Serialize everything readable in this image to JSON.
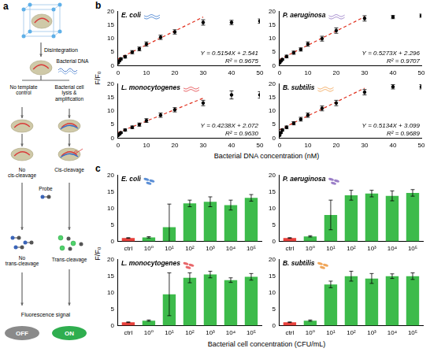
{
  "diagram": {
    "letter": "a",
    "disintegration": "Disintegration",
    "bacterial_dna": "Bacterial DNA",
    "no_template": "No template control",
    "lysis": "Bacterial cell lysis & amplification",
    "no_cis": "No cis-cleavage",
    "cis": "Cis-cleavage",
    "probe": "Probe",
    "no_trans": "No trans-cleavage",
    "trans": "Trans-cleavage",
    "signal": "Fluorescence signal",
    "off": "OFF",
    "on": "ON"
  },
  "chart_data": [
    {
      "panel": "b",
      "x_label": "Bacterial DNA concentration (nM)",
      "y_label": "F/F₀",
      "charts": [
        {
          "type": "scatter",
          "title": "E. coli",
          "color": "#5b8fd6",
          "x": [
            0,
            0.5,
            1,
            2.5,
            5,
            7.5,
            10,
            15,
            20,
            30,
            40,
            50
          ],
          "values": [
            1,
            1.8,
            2.5,
            3.3,
            5,
            6.2,
            8,
            10.5,
            12.5,
            16,
            16,
            16.5
          ],
          "errors": [
            0.2,
            0.3,
            0.4,
            0.5,
            0.6,
            0.7,
            0.8,
            0.8,
            0.8,
            1,
            0.8,
            0.8
          ],
          "fit": {
            "x": [
              0,
              30
            ],
            "values": [
              2.54,
              18.0
            ],
            "color": "#e0301e",
            "line_style": "dashed"
          },
          "annotations": [
            "Y = 0.5154X + 2.541",
            "R² = 0.9675"
          ],
          "xlim": [
            0,
            50
          ],
          "xticks": [
            0,
            10,
            20,
            30,
            40,
            50
          ],
          "ylim": [
            0,
            20
          ],
          "yticks": [
            0,
            5,
            10,
            15,
            20
          ]
        },
        {
          "type": "scatter",
          "title": "P. aeruginosa",
          "color": "#9b7fc8",
          "x": [
            0,
            0.5,
            1,
            2.5,
            5,
            7.5,
            10,
            15,
            20,
            30,
            40,
            50
          ],
          "values": [
            1,
            1.7,
            2.3,
            3.4,
            4.8,
            6,
            8,
            10,
            13,
            17.5,
            18,
            18.5
          ],
          "errors": [
            0.2,
            0.3,
            0.3,
            0.5,
            0.6,
            0.6,
            0.8,
            0.9,
            1,
            1,
            0.6,
            0.6
          ],
          "fit": {
            "x": [
              0,
              30
            ],
            "values": [
              2.3,
              18.1
            ],
            "color": "#e0301e",
            "line_style": "dashed"
          },
          "annotations": [
            "Y = 0.5273X + 2.296",
            "R² = 0.9707"
          ],
          "xlim": [
            0,
            50
          ],
          "xticks": [
            0,
            10,
            20,
            30,
            40,
            50
          ],
          "ylim": [
            0,
            20
          ],
          "yticks": [
            0,
            5,
            10,
            15,
            20
          ]
        },
        {
          "type": "scatter",
          "title": "L. monocytogenes",
          "color": "#e8676a",
          "x": [
            0,
            0.5,
            1,
            2.5,
            5,
            7.5,
            10,
            15,
            20,
            30,
            40,
            50
          ],
          "values": [
            1,
            1.5,
            2,
            3,
            4,
            5,
            6.5,
            8.5,
            10.5,
            13,
            16,
            16
          ],
          "errors": [
            0.2,
            0.3,
            0.3,
            0.4,
            0.5,
            0.6,
            0.7,
            0.8,
            0.8,
            1,
            1.5,
            1.2
          ],
          "fit": {
            "x": [
              0,
              30
            ],
            "values": [
              2.07,
              14.8
            ],
            "color": "#e0301e",
            "line_style": "dashed"
          },
          "annotations": [
            "Y = 0.4238X + 2.072",
            "R² = 0.9630"
          ],
          "xlim": [
            0,
            50
          ],
          "xticks": [
            0,
            10,
            20,
            30,
            40,
            50
          ],
          "ylim": [
            0,
            20
          ],
          "yticks": [
            0,
            5,
            10,
            15,
            20
          ]
        },
        {
          "type": "scatter",
          "title": "B. subtilis",
          "color": "#f0a65a",
          "x": [
            0,
            0.5,
            1,
            2.5,
            5,
            7.5,
            10,
            15,
            20,
            30,
            40,
            50
          ],
          "values": [
            1,
            2,
            3,
            4,
            5.5,
            7,
            8.5,
            11,
            13,
            17,
            19,
            19
          ],
          "errors": [
            0.2,
            0.3,
            0.4,
            0.5,
            0.6,
            0.7,
            0.8,
            0.9,
            1,
            1,
            0.8,
            0.8
          ],
          "fit": {
            "x": [
              0,
              30
            ],
            "values": [
              3.1,
              18.5
            ],
            "color": "#e0301e",
            "line_style": "dashed"
          },
          "annotations": [
            "Y = 0.5134X + 3.099",
            "R² = 0.9689"
          ],
          "xlim": [
            0,
            50
          ],
          "xticks": [
            0,
            10,
            20,
            30,
            40,
            50
          ],
          "ylim": [
            0,
            20
          ],
          "yticks": [
            0,
            5,
            10,
            15,
            20
          ]
        }
      ]
    },
    {
      "panel": "c",
      "x_label": "Bacterial cell concentration (CFU/mL)",
      "y_label": "F/F₀",
      "charts": [
        {
          "type": "bar",
          "title": "E. coli",
          "color": "#5b8fd6",
          "categories": [
            "ctrl",
            "10⁰",
            "10¹",
            "10²",
            "10³",
            "10⁴",
            "10⁵"
          ],
          "values": [
            1,
            1.2,
            4.3,
            11.5,
            12,
            11,
            13.2
          ],
          "errors": [
            0.1,
            0.2,
            7,
            1,
            1.5,
            1.5,
            1
          ],
          "colors": [
            "#e8413c",
            "#3dbb4b",
            "#3dbb4b",
            "#3dbb4b",
            "#3dbb4b",
            "#3dbb4b",
            "#3dbb4b"
          ],
          "ylim": [
            0,
            20
          ],
          "yticks": [
            0,
            5,
            10,
            15,
            20
          ]
        },
        {
          "type": "bar",
          "title": "P. aeruginosa",
          "color": "#9b7fc8",
          "categories": [
            "ctrl",
            "10⁰",
            "10¹",
            "10²",
            "10³",
            "10⁴",
            "10⁵"
          ],
          "values": [
            1,
            1.5,
            8,
            14,
            14.5,
            13.8,
            14.7
          ],
          "errors": [
            0.1,
            0.2,
            4.5,
            1.5,
            1,
            1.5,
            1
          ],
          "colors": [
            "#e8413c",
            "#3dbb4b",
            "#3dbb4b",
            "#3dbb4b",
            "#3dbb4b",
            "#3dbb4b",
            "#3dbb4b"
          ],
          "ylim": [
            0,
            20
          ],
          "yticks": [
            0,
            5,
            10,
            15,
            20
          ]
        },
        {
          "type": "bar",
          "title": "L. monocytogenes",
          "color": "#e8676a",
          "categories": [
            "ctrl",
            "10⁰",
            "10¹",
            "10²",
            "10³",
            "10⁴",
            "10⁵"
          ],
          "values": [
            1,
            1.5,
            9.5,
            14.5,
            15.5,
            13.8,
            14.8
          ],
          "errors": [
            0.1,
            0.2,
            6.5,
            1.5,
            1,
            0.7,
            1
          ],
          "colors": [
            "#e8413c",
            "#3dbb4b",
            "#3dbb4b",
            "#3dbb4b",
            "#3dbb4b",
            "#3dbb4b",
            "#3dbb4b"
          ],
          "ylim": [
            0,
            20
          ],
          "yticks": [
            0,
            5,
            10,
            15,
            20
          ]
        },
        {
          "type": "bar",
          "title": "B. subtilis",
          "color": "#f0a65a",
          "categories": [
            "ctrl",
            "10⁰",
            "10¹",
            "10²",
            "10³",
            "10⁴",
            "10⁵"
          ],
          "values": [
            1,
            1.5,
            12.5,
            15,
            14.3,
            15,
            15
          ],
          "errors": [
            0.1,
            0.2,
            1,
            1.5,
            1.5,
            0.7,
            1
          ],
          "colors": [
            "#e8413c",
            "#3dbb4b",
            "#3dbb4b",
            "#3dbb4b",
            "#3dbb4b",
            "#3dbb4b",
            "#3dbb4b"
          ],
          "ylim": [
            0,
            20
          ],
          "yticks": [
            0,
            5,
            10,
            15,
            20
          ]
        }
      ]
    }
  ]
}
